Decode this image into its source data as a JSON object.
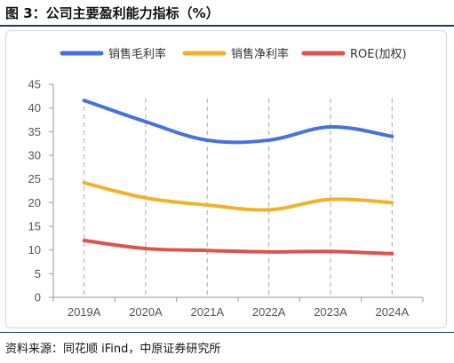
{
  "figure": {
    "title": "图 3：公司主要盈利能力指标（%）",
    "source": "资料来源：同花顺 iFind，中原证券研究所"
  },
  "chart_data": {
    "type": "line",
    "categories": [
      "2019A",
      "2020A",
      "2021A",
      "2022A",
      "2023A",
      "2024A"
    ],
    "ylim": [
      0,
      45
    ],
    "yticks": [
      0,
      5,
      10,
      15,
      20,
      25,
      30,
      35,
      40,
      45
    ],
    "grid": "vertical dashed",
    "legend_position": "top",
    "smooth": true,
    "series": [
      {
        "name": "销售毛利率",
        "color": "#4472e4",
        "values": [
          41.6,
          37.1,
          33.2,
          33.2,
          36.0,
          34.0
        ]
      },
      {
        "name": "销售净利率",
        "color": "#f2b128",
        "values": [
          24.2,
          21.0,
          19.5,
          18.5,
          20.7,
          20.0
        ]
      },
      {
        "name": "ROE(加权)",
        "color": "#e0524d",
        "values": [
          12.0,
          10.3,
          9.9,
          9.6,
          9.7,
          9.2
        ]
      }
    ]
  }
}
